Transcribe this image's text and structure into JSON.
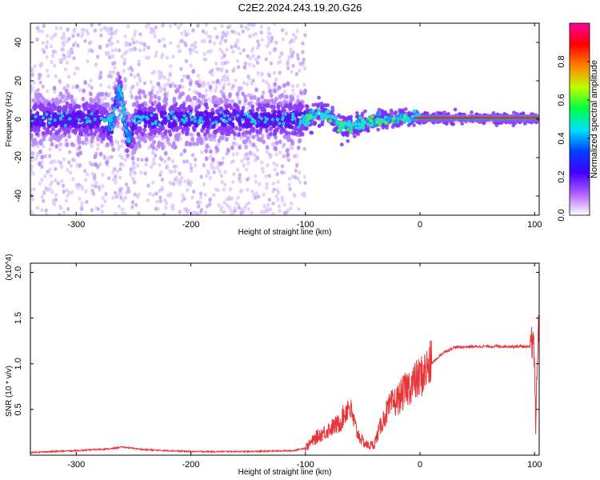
{
  "title": "C2E2.2024.243.19.20.G26",
  "chart_data": [
    {
      "type": "heatmap",
      "title": "C2E2.2024.243.19.20.G26",
      "xlabel": "Height of straight line (km)",
      "ylabel": "Frequency (Hz)",
      "xlim": [
        -340,
        104
      ],
      "ylim": [
        -50,
        50
      ],
      "x_ticks": [
        -300,
        -200,
        -100,
        0,
        100
      ],
      "y_ticks": [
        -40,
        -20,
        0,
        20,
        40
      ],
      "colorbar": {
        "label": "Normalized spectral amplitude",
        "range": [
          0.0,
          1.0
        ],
        "ticks": [
          "0.0",
          "0.2",
          "0.4",
          "0.6",
          "0.8"
        ],
        "colors": [
          "#ffffff",
          "#b060ff",
          "#4000ff",
          "#0040ff",
          "#00e0ff",
          "#00ff40",
          "#c0ff00",
          "#ff8000",
          "#ff0000",
          "#ff00a0"
        ]
      },
      "ridge": [
        {
          "x": -340,
          "y": 0.0
        },
        {
          "x": -280,
          "y": 0.0
        },
        {
          "x": -270,
          "y": -6.0
        },
        {
          "x": -262,
          "y": 17.0
        },
        {
          "x": -255,
          "y": -10.0
        },
        {
          "x": -245,
          "y": 0.0
        },
        {
          "x": -100,
          "y": 0.0
        },
        {
          "x": -90,
          "y": 3.0
        },
        {
          "x": -80,
          "y": 2.0
        },
        {
          "x": -70,
          "y": -3.0
        },
        {
          "x": -60,
          "y": -4.0
        },
        {
          "x": -45,
          "y": -2.0
        },
        {
          "x": -30,
          "y": 0.0
        },
        {
          "x": -20,
          "y": 0.0
        },
        {
          "x": -10,
          "y": 1.0
        },
        {
          "x": 0,
          "y": 0.5
        },
        {
          "x": 100,
          "y": 0.5
        }
      ]
    },
    {
      "type": "line",
      "xlabel": "Height of straight line (km)",
      "ylabel": "SNR (10 * v/v)",
      "y_multiplier": "(x10^4)",
      "xlim": [
        -340,
        104
      ],
      "ylim": [
        0,
        2.1
      ],
      "x_ticks": [
        -300,
        -200,
        -100,
        0,
        100
      ],
      "y_ticks": [
        "0.5",
        "1.0",
        "1.5",
        "2.0"
      ],
      "color": "#e8353a",
      "series": [
        {
          "x": [
            -340,
            -300,
            -270,
            -260,
            -240,
            -200,
            -150,
            -110,
            -100,
            -90,
            -80,
            -70,
            -62,
            -55,
            -50,
            -45,
            -40,
            -35,
            -30,
            -25,
            -20,
            -10,
            0,
            10,
            20,
            30,
            50,
            70,
            90,
            96,
            98,
            100,
            101,
            102,
            103
          ],
          "y": [
            0.03,
            0.05,
            0.07,
            0.09,
            0.06,
            0.04,
            0.04,
            0.05,
            0.08,
            0.2,
            0.28,
            0.35,
            0.55,
            0.25,
            0.15,
            0.1,
            0.12,
            0.3,
            0.45,
            0.55,
            0.6,
            0.75,
            0.85,
            1.0,
            1.12,
            1.18,
            1.19,
            1.19,
            1.19,
            1.18,
            1.25,
            1.05,
            0.3,
            0.8,
            1.4
          ]
        }
      ]
    }
  ]
}
